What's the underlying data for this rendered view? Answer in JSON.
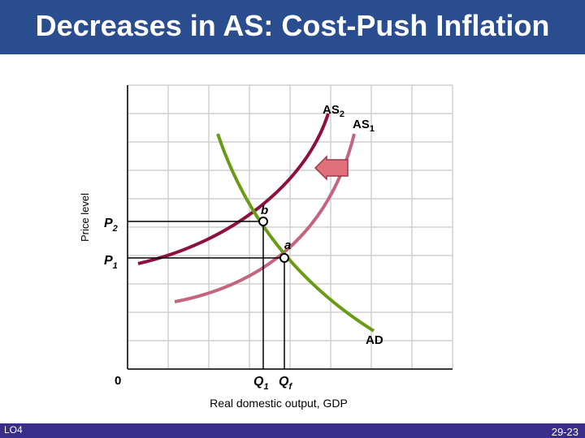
{
  "title": "Decreases in AS: Cost-Push Inflation",
  "footer": {
    "left": "LO4",
    "right": "29-23"
  },
  "axes": {
    "y_label": "Price level",
    "x_label": "Real domestic output, GDP",
    "origin": "0"
  },
  "curves": {
    "as1": {
      "label_main": "AS",
      "label_sub": "1",
      "color": "#c4657e"
    },
    "as2": {
      "label_main": "AS",
      "label_sub": "2",
      "color": "#8c1040"
    },
    "ad": {
      "label": "AD",
      "color": "#6a9b14"
    }
  },
  "points": {
    "a": {
      "label": "a"
    },
    "b": {
      "label": "b"
    }
  },
  "prices": {
    "p1": {
      "main": "P",
      "sub": "1"
    },
    "p2": {
      "main": "P",
      "sub": "2"
    }
  },
  "quantities": {
    "q1": {
      "main": "Q",
      "sub": "1"
    },
    "qf": {
      "main": "Q",
      "sub": "f"
    }
  },
  "shift_arrow": {
    "direction": "left",
    "color": "#e0707a"
  },
  "grid": true
}
